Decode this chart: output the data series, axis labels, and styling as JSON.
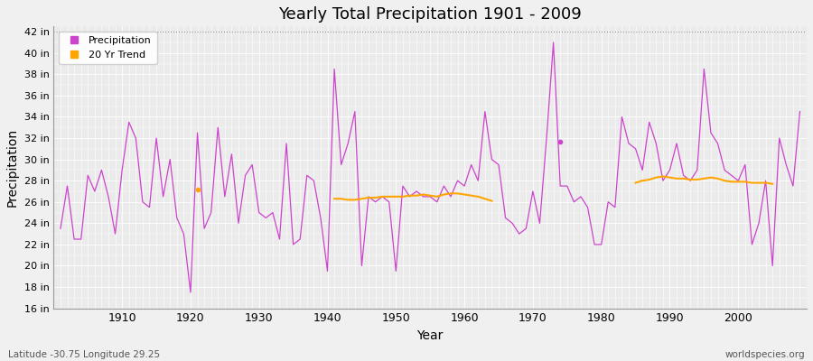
{
  "title": "Yearly Total Precipitation 1901 - 2009",
  "xlabel": "Year",
  "ylabel": "Precipitation",
  "bottom_left": "Latitude -30.75 Longitude 29.25",
  "bottom_right": "worldspecies.org",
  "ylim": [
    16,
    42.5
  ],
  "yticks": [
    16,
    18,
    20,
    22,
    24,
    26,
    28,
    30,
    32,
    34,
    36,
    38,
    40,
    42
  ],
  "ytick_labels": [
    "16 in",
    "18 in",
    "20 in",
    "22 in",
    "24 in",
    "26 in",
    "28 in",
    "30 in",
    "32 in",
    "34 in",
    "36 in",
    "38 in",
    "40 in",
    "42 in"
  ],
  "xticks": [
    1910,
    1920,
    1930,
    1940,
    1950,
    1960,
    1970,
    1980,
    1990,
    2000
  ],
  "xlim": [
    1901,
    2009
  ],
  "years": [
    1901,
    1902,
    1903,
    1904,
    1905,
    1906,
    1907,
    1908,
    1909,
    1910,
    1911,
    1912,
    1913,
    1914,
    1915,
    1916,
    1917,
    1918,
    1919,
    1920,
    1921,
    1922,
    1923,
    1924,
    1925,
    1926,
    1927,
    1928,
    1929,
    1930,
    1931,
    1932,
    1933,
    1934,
    1935,
    1936,
    1937,
    1938,
    1939,
    1940,
    1941,
    1942,
    1943,
    1944,
    1945,
    1946,
    1947,
    1948,
    1949,
    1950,
    1951,
    1952,
    1953,
    1954,
    1955,
    1956,
    1957,
    1958,
    1959,
    1960,
    1961,
    1962,
    1963,
    1964,
    1965,
    1966,
    1967,
    1968,
    1969,
    1970,
    1971,
    1972,
    1973,
    1974,
    1975,
    1976,
    1977,
    1978,
    1979,
    1980,
    1981,
    1982,
    1983,
    1984,
    1985,
    1986,
    1987,
    1988,
    1989,
    1990,
    1991,
    1992,
    1993,
    1994,
    1995,
    1996,
    1997,
    1998,
    1999,
    2000,
    2001,
    2002,
    2003,
    2004,
    2005,
    2006,
    2007,
    2008,
    2009
  ],
  "precip": [
    23.5,
    27.5,
    22.5,
    22.5,
    28.5,
    27.0,
    29.0,
    26.5,
    23.0,
    29.0,
    33.5,
    32.0,
    26.0,
    25.5,
    32.0,
    26.5,
    30.0,
    24.5,
    23.0,
    17.5,
    32.5,
    23.5,
    25.0,
    33.0,
    26.5,
    30.5,
    24.0,
    28.5,
    29.5,
    25.0,
    24.5,
    25.0,
    22.5,
    31.5,
    22.0,
    22.5,
    28.5,
    28.0,
    24.5,
    19.5,
    38.5,
    29.5,
    31.5,
    34.5,
    20.0,
    26.5,
    26.0,
    26.5,
    26.0,
    19.5,
    27.5,
    26.5,
    27.0,
    26.5,
    26.5,
    26.0,
    27.5,
    26.5,
    28.0,
    27.5,
    29.5,
    28.0,
    34.5,
    30.0,
    29.5,
    24.5,
    24.0,
    23.0,
    23.5,
    27.0,
    24.0,
    32.0,
    41.0,
    27.5,
    27.5,
    26.0,
    26.5,
    25.5,
    22.0,
    22.0,
    26.0,
    25.5,
    34.0,
    31.5,
    31.0,
    29.0,
    33.5,
    31.5,
    28.0,
    29.0,
    31.5,
    28.5,
    28.0,
    29.0,
    38.5,
    32.5,
    31.5,
    29.0,
    28.5,
    28.0,
    29.5,
    22.0,
    24.0,
    28.0,
    20.0,
    32.0,
    29.5,
    27.5,
    34.5
  ],
  "trend_years_1": [
    1941,
    1942,
    1943,
    1944,
    1945,
    1946,
    1947,
    1948,
    1949,
    1950,
    1951,
    1952,
    1953,
    1954,
    1955,
    1956,
    1957,
    1958,
    1959,
    1960,
    1961,
    1962,
    1963,
    1964
  ],
  "trend_values_1": [
    26.3,
    26.3,
    26.2,
    26.2,
    26.3,
    26.4,
    26.4,
    26.5,
    26.5,
    26.5,
    26.5,
    26.6,
    26.6,
    26.7,
    26.6,
    26.5,
    26.7,
    26.8,
    26.8,
    26.7,
    26.6,
    26.5,
    26.3,
    26.1
  ],
  "trend_years_2": [
    1985,
    1986,
    1987,
    1988,
    1989,
    1990,
    1991,
    1992,
    1993,
    1994,
    1995,
    1996,
    1997,
    1998,
    1999,
    2000,
    2001,
    2002,
    2003,
    2004,
    2005
  ],
  "trend_values_2": [
    27.8,
    28.0,
    28.1,
    28.3,
    28.4,
    28.3,
    28.2,
    28.2,
    28.1,
    28.1,
    28.2,
    28.3,
    28.2,
    28.0,
    27.9,
    27.9,
    27.9,
    27.8,
    27.8,
    27.8,
    27.7
  ],
  "trend_color": "#FFA500",
  "precip_color": "#CC44CC",
  "bg_color": "#F0F0F0",
  "plot_bg_color": "#EBEBEB",
  "grid_color": "#FFFFFF",
  "dotted_line_y": 42,
  "outlier_year": 1921,
  "outlier_value": 27.2,
  "outlier2_year": 1974,
  "outlier2_value": 31.7
}
